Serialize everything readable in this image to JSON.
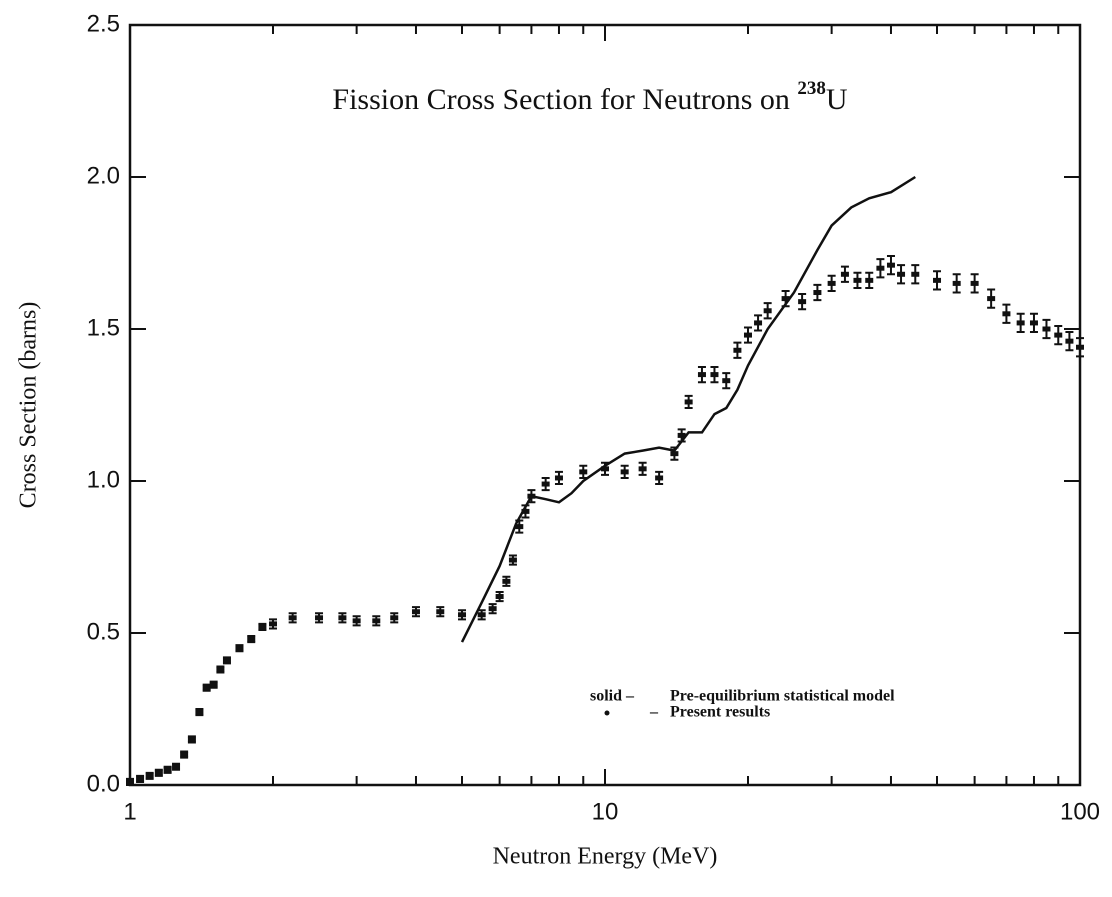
{
  "chart_data": {
    "type": "scatter",
    "title_parts": [
      "Fission Cross Section for Neutrons on ",
      "238",
      "U"
    ],
    "x_label": "Neutron Energy (MeV)",
    "y_label": "Cross Section (barns)",
    "xscale": "log",
    "xlim": [
      1,
      100
    ],
    "xticks": [
      1,
      10,
      100
    ],
    "xminorticks": [
      2,
      3,
      4,
      5,
      6,
      7,
      8,
      9,
      20,
      30,
      40,
      50,
      60,
      70,
      80,
      90
    ],
    "ylim": [
      0,
      2.5
    ],
    "yticks": [
      {
        "value": 0,
        "label": "0.0"
      },
      0.5,
      {
        "value": 1,
        "label": "1.0"
      },
      1.5,
      {
        "value": 2,
        "label": "2.0"
      },
      2.5
    ],
    "legend_position": "lower right",
    "series": [
      {
        "name": "Pre-equilibrium statistical model",
        "legend_key": "solid –",
        "type": "line",
        "color": "#111111",
        "x": [
          5.0,
          5.5,
          6.0,
          6.5,
          7.0,
          7.5,
          8.0,
          8.5,
          9,
          10,
          11,
          12,
          13,
          14,
          15,
          16,
          17,
          18,
          19,
          20,
          22,
          25,
          28,
          30,
          33,
          36,
          40,
          45
        ],
        "values": [
          0.47,
          0.6,
          0.72,
          0.86,
          0.95,
          0.94,
          0.93,
          0.96,
          1.0,
          1.05,
          1.09,
          1.1,
          1.11,
          1.1,
          1.16,
          1.16,
          1.22,
          1.24,
          1.3,
          1.38,
          1.5,
          1.62,
          1.76,
          1.84,
          1.9,
          1.93,
          1.95,
          2.0
        ]
      },
      {
        "name": "Present results",
        "legend_key": "–",
        "type": "scatter",
        "color": "#111111",
        "x": [
          1.0,
          1.05,
          1.1,
          1.15,
          1.2,
          1.25,
          1.3,
          1.35,
          1.4,
          1.45,
          1.5,
          1.55,
          1.6,
          1.7,
          1.8,
          1.9,
          2.0,
          2.2,
          2.5,
          2.8,
          3.0,
          3.3,
          3.6,
          4.0,
          4.5,
          5.0,
          5.5,
          5.8,
          6.0,
          6.2,
          6.4,
          6.6,
          6.8,
          7.0,
          7.5,
          8.0,
          9.0,
          10,
          11,
          12,
          13,
          14,
          14.5,
          15,
          16,
          17,
          18,
          19,
          20,
          21,
          22,
          24,
          26,
          28,
          30,
          32,
          34,
          36,
          38,
          40,
          42,
          45,
          50,
          55,
          60,
          65,
          70,
          75,
          80,
          85,
          90,
          95,
          100
        ],
        "values": [
          0.01,
          0.02,
          0.03,
          0.04,
          0.05,
          0.06,
          0.1,
          0.15,
          0.24,
          0.32,
          0.33,
          0.38,
          0.41,
          0.45,
          0.48,
          0.52,
          0.53,
          0.55,
          0.55,
          0.55,
          0.54,
          0.54,
          0.55,
          0.57,
          0.57,
          0.56,
          0.56,
          0.58,
          0.62,
          0.67,
          0.74,
          0.85,
          0.9,
          0.95,
          0.99,
          1.01,
          1.03,
          1.04,
          1.03,
          1.04,
          1.01,
          1.09,
          1.15,
          1.26,
          1.35,
          1.35,
          1.33,
          1.43,
          1.48,
          1.52,
          1.56,
          1.6,
          1.59,
          1.62,
          1.65,
          1.68,
          1.66,
          1.66,
          1.7,
          1.71,
          1.68,
          1.68,
          1.66,
          1.65,
          1.65,
          1.6,
          1.55,
          1.52,
          1.52,
          1.5,
          1.48,
          1.46,
          1.44
        ],
        "errors": [
          0.01,
          0.01,
          0.01,
          0.01,
          0.01,
          0.01,
          0.01,
          0.01,
          0.01,
          0.01,
          0.01,
          0.01,
          0.01,
          0.01,
          0.01,
          0.01,
          0.015,
          0.015,
          0.015,
          0.015,
          0.015,
          0.015,
          0.015,
          0.015,
          0.015,
          0.015,
          0.015,
          0.015,
          0.015,
          0.015,
          0.015,
          0.02,
          0.02,
          0.02,
          0.02,
          0.02,
          0.02,
          0.02,
          0.02,
          0.02,
          0.02,
          0.02,
          0.02,
          0.02,
          0.025,
          0.025,
          0.025,
          0.025,
          0.025,
          0.025,
          0.025,
          0.025,
          0.025,
          0.025,
          0.025,
          0.025,
          0.025,
          0.025,
          0.03,
          0.03,
          0.03,
          0.03,
          0.03,
          0.03,
          0.03,
          0.03,
          0.03,
          0.03,
          0.03,
          0.03,
          0.03,
          0.03,
          0.03
        ]
      }
    ]
  }
}
